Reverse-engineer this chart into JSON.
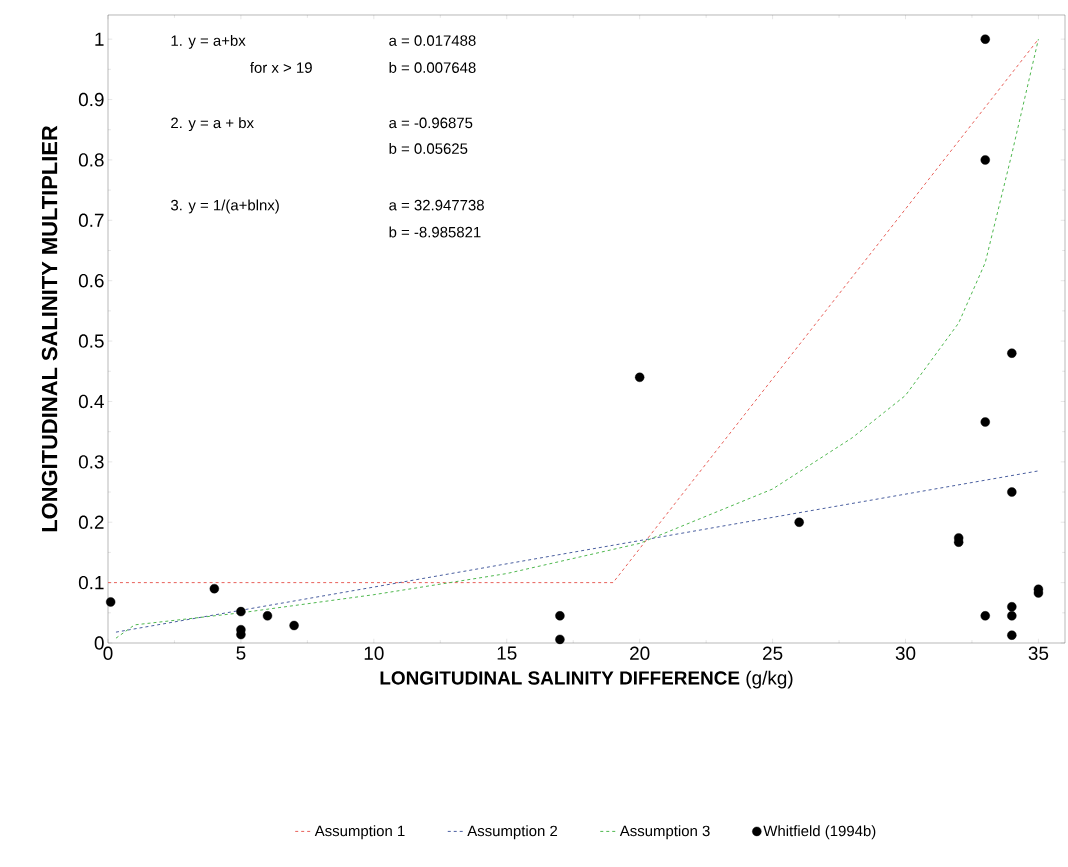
{
  "chart_data": {
    "type": "line",
    "xlabel": "**LONGITUDINAL SALINITY DIFFERENCE** (g/kg)",
    "ylabel": "LONGITUDINAL SALINITY MULTIPLIER",
    "xlim": [
      0,
      36
    ],
    "ylim": [
      0,
      1.04
    ],
    "xticks": [
      0,
      5,
      10,
      15,
      20,
      25,
      30,
      35
    ],
    "yticks": [
      0,
      0.1,
      0.2,
      0.3,
      0.4,
      0.5,
      0.6,
      0.7,
      0.8,
      0.9,
      1
    ],
    "legend": "bottom",
    "annotations": [
      "1. y = a+bx",
      "for x > 19",
      "a =  0.017488",
      "b =  0.007648",
      "2. y = a + bx",
      "a = -0.96875",
      "b =  0.05625",
      "3. y = 1/(a+blnx)",
      "a =  32.947738",
      "b = -8.985821"
    ],
    "series": [
      {
        "name": "Assumption 1",
        "color": "#e8615a",
        "line_style": "dashed",
        "marker": "none",
        "x": [
          0,
          19,
          35
        ],
        "values": [
          0.1,
          0.1,
          1.0
        ]
      },
      {
        "name": "Assumption 2",
        "color": "#4a5fa0",
        "line_style": "dashed",
        "marker": "none",
        "x": [
          0.3,
          35
        ],
        "values": [
          0.018,
          0.285
        ]
      },
      {
        "name": "Assumption 3",
        "color": "#4fb84f",
        "line_style": "dashed",
        "marker": "none",
        "x": [
          0.3,
          1,
          5,
          10,
          15,
          20,
          25,
          28,
          30,
          32,
          33,
          34,
          35
        ],
        "values": [
          0.008,
          0.03,
          0.05,
          0.08,
          0.115,
          0.165,
          0.255,
          0.34,
          0.41,
          0.53,
          0.63,
          0.81,
          1.0
        ]
      },
      {
        "name": "Whitfield (1994b)",
        "type": "scatter",
        "color": "#000000",
        "marker": "circle",
        "x": [
          0.1,
          4,
          5,
          5,
          5,
          6,
          7,
          17,
          17,
          20,
          26,
          32,
          32,
          33,
          33,
          33,
          33,
          34,
          34,
          34,
          34,
          34,
          35,
          35
        ],
        "values": [
          0.068,
          0.09,
          0.052,
          0.022,
          0.014,
          0.045,
          0.029,
          0.045,
          0.006,
          0.44,
          0.2,
          0.174,
          0.167,
          1.0,
          0.8,
          0.366,
          0.045,
          0.48,
          0.25,
          0.06,
          0.045,
          0.013,
          0.089,
          0.083
        ]
      }
    ]
  }
}
